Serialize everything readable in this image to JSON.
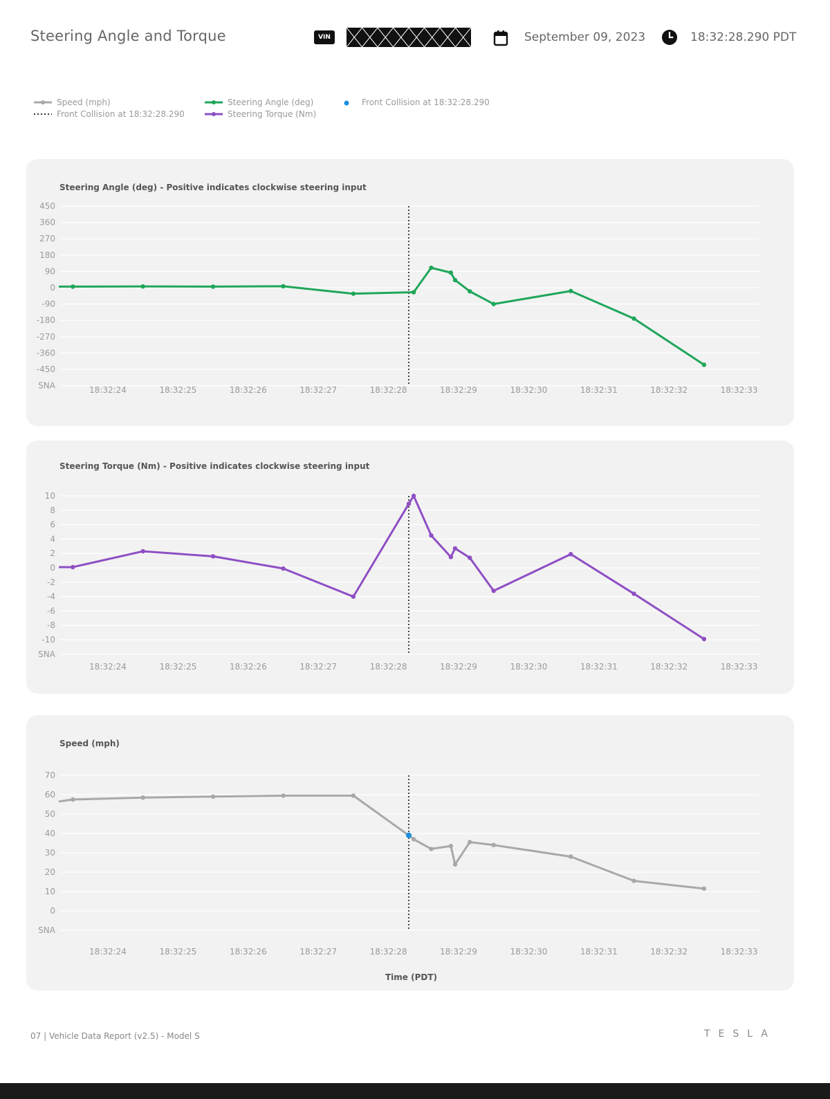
{
  "header": {
    "title": "Steering Angle and Torque",
    "vin_badge": "VIN",
    "date": "September 09, 2023",
    "time": "18:32:28.290 PDT"
  },
  "legend": {
    "speed": "Speed (mph)",
    "collision_line": "Front Collision at 18:32:28.290",
    "steering_angle": "Steering Angle (deg)",
    "steering_torque": "Steering Torque (Nm)",
    "collision_point": "Front Collision at 18:32:28.290"
  },
  "colors": {
    "speed": "#a8a8a8",
    "angle": "#1fa65a",
    "torque": "#8e4fc4",
    "collision": "#1a8fe0"
  },
  "footer": {
    "left": "07 | Vehicle Data Report (v2.5) - Model S",
    "logo": "TESLA"
  },
  "chart_data": [
    {
      "type": "line",
      "title": "Steering Angle (deg) - Positive indicates clockwise steering input",
      "x_ticks": [
        "18:32:24",
        "18:32:25",
        "18:32:26",
        "18:32:27",
        "18:32:28",
        "18:32:29",
        "18:32:30",
        "18:32:31",
        "18:32:32",
        "18:32:33"
      ],
      "y_ticks": [
        "450",
        "360",
        "270",
        "180",
        "90",
        "0",
        "-90",
        "-180",
        "-270",
        "-360",
        "-450",
        "SNA"
      ],
      "ylim": [
        -450,
        450
      ],
      "collision_time": "18:32:28.290",
      "series": [
        {
          "name": "Steering Angle (deg)",
          "color": "#1fa65a",
          "points": [
            {
              "t": "18:32:23.30",
              "y": 6
            },
            {
              "t": "18:32:23.50",
              "y": 6
            },
            {
              "t": "18:32:24.50",
              "y": 7
            },
            {
              "t": "18:32:25.50",
              "y": 6
            },
            {
              "t": "18:32:26.50",
              "y": 8
            },
            {
              "t": "18:32:27.50",
              "y": -33
            },
            {
              "t": "18:32:28.36",
              "y": -25
            },
            {
              "t": "18:32:28.61",
              "y": 110
            },
            {
              "t": "18:32:28.89",
              "y": 83
            },
            {
              "t": "18:32:28.95",
              "y": 42
            },
            {
              "t": "18:32:29.16",
              "y": -20
            },
            {
              "t": "18:32:29.50",
              "y": -90
            },
            {
              "t": "18:32:30.60",
              "y": -18
            },
            {
              "t": "18:32:31.50",
              "y": -170
            },
            {
              "t": "18:32:32.50",
              "y": -425
            }
          ]
        }
      ]
    },
    {
      "type": "line",
      "title": "Steering Torque (Nm) - Positive indicates clockwise steering input",
      "x_ticks": [
        "18:32:24",
        "18:32:25",
        "18:32:26",
        "18:32:27",
        "18:32:28",
        "18:32:29",
        "18:32:30",
        "18:32:31",
        "18:32:32",
        "18:32:33"
      ],
      "y_ticks": [
        "10",
        "8",
        "6",
        "4",
        "2",
        "0",
        "-2",
        "-4",
        "-6",
        "-8",
        "-10",
        "SNA"
      ],
      "ylim": [
        -10,
        10
      ],
      "collision_time": "18:32:28.290",
      "series": [
        {
          "name": "Steering Torque (Nm)",
          "color": "#8e4fc4",
          "points": [
            {
              "t": "18:32:23.30",
              "y": 0.1
            },
            {
              "t": "18:32:23.50",
              "y": 0.1
            },
            {
              "t": "18:32:24.50",
              "y": 2.3
            },
            {
              "t": "18:32:25.50",
              "y": 1.6
            },
            {
              "t": "18:32:26.50",
              "y": -0.1
            },
            {
              "t": "18:32:27.50",
              "y": -4.0
            },
            {
              "t": "18:32:28.29",
              "y": 8.9
            },
            {
              "t": "18:32:28.36",
              "y": 10.0
            },
            {
              "t": "18:32:28.61",
              "y": 4.5
            },
            {
              "t": "18:32:28.89",
              "y": 1.5
            },
            {
              "t": "18:32:28.95",
              "y": 2.7
            },
            {
              "t": "18:32:29.16",
              "y": 1.4
            },
            {
              "t": "18:32:29.50",
              "y": -3.2
            },
            {
              "t": "18:32:30.60",
              "y": 1.9
            },
            {
              "t": "18:32:31.50",
              "y": -3.6
            },
            {
              "t": "18:32:32.50",
              "y": -9.9
            }
          ]
        }
      ]
    },
    {
      "type": "line",
      "title": "Speed (mph)",
      "xlabel": "Time (PDT)",
      "x_ticks": [
        "18:32:24",
        "18:32:25",
        "18:32:26",
        "18:32:27",
        "18:32:28",
        "18:32:29",
        "18:32:30",
        "18:32:31",
        "18:32:32",
        "18:32:33"
      ],
      "y_ticks": [
        "70",
        "60",
        "50",
        "40",
        "30",
        "20",
        "10",
        "0",
        "SNA"
      ],
      "ylim": [
        0,
        70
      ],
      "collision_time": "18:32:28.290",
      "collision_point": {
        "t": "18:32:28.29",
        "y": 39
      },
      "series": [
        {
          "name": "Speed (mph)",
          "color": "#a8a8a8",
          "points": [
            {
              "t": "18:32:23.30",
              "y": 56.5
            },
            {
              "t": "18:32:23.50",
              "y": 57.5
            },
            {
              "t": "18:32:24.50",
              "y": 58.5
            },
            {
              "t": "18:32:25.50",
              "y": 59.0
            },
            {
              "t": "18:32:26.50",
              "y": 59.5
            },
            {
              "t": "18:32:27.50",
              "y": 59.5
            },
            {
              "t": "18:32:28.29",
              "y": 39.0
            },
            {
              "t": "18:32:28.36",
              "y": 37.0
            },
            {
              "t": "18:32:28.61",
              "y": 32.0
            },
            {
              "t": "18:32:28.89",
              "y": 33.5
            },
            {
              "t": "18:32:28.95",
              "y": 24.0
            },
            {
              "t": "18:32:29.16",
              "y": 35.5
            },
            {
              "t": "18:32:29.50",
              "y": 34.0
            },
            {
              "t": "18:32:30.60",
              "y": 28.0
            },
            {
              "t": "18:32:31.50",
              "y": 15.5
            },
            {
              "t": "18:32:32.50",
              "y": 11.5
            }
          ]
        }
      ]
    }
  ]
}
